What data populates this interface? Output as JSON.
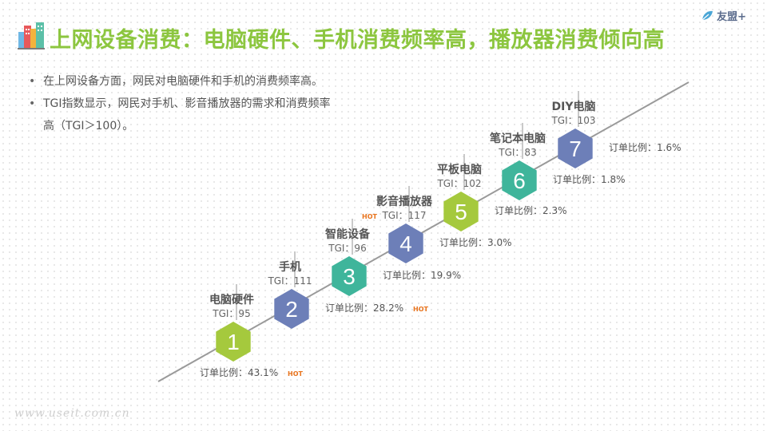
{
  "title": "上网设备消费：电脑硬件、手机消费频率高，播放器消费倾向高",
  "logo": {
    "text": "友盟+"
  },
  "bullets": [
    "在上网设备方面，网民对电脑硬件和手机的消费频率高。",
    "TGI指数显示，网民对手机、影音播放器的需求和消费频率",
    "高（TGI＞100）。"
  ],
  "footer": "www.useit.com.cn",
  "hot_label": "HOT",
  "colors": {
    "green": "#a5c93d",
    "navy": "#6d7fb8",
    "teal": "#3fb59b",
    "hot": "#e8741e",
    "title": "#8cc63f"
  },
  "steps": [
    {
      "num": "1",
      "name": "电脑硬件",
      "tgi": "TGI：95",
      "order": "订单比例：43.1%",
      "hot_name": false,
      "hot_order": true,
      "color": "green"
    },
    {
      "num": "2",
      "name": "手机",
      "tgi": "TGI：111",
      "order": "订单比例：28.2%",
      "hot_name": false,
      "hot_order": true,
      "color": "navy"
    },
    {
      "num": "3",
      "name": "智能设备",
      "tgi": "TGI：96",
      "order": "订单比例：19.9%",
      "hot_name": false,
      "hot_order": false,
      "color": "teal"
    },
    {
      "num": "4",
      "name": "影音播放器",
      "tgi": "TGI：117",
      "order": "订单比例：3.0%",
      "hot_name": true,
      "hot_order": false,
      "color": "navy"
    },
    {
      "num": "5",
      "name": "平板电脑",
      "tgi": "TGI：102",
      "order": "订单比例：2.3%",
      "hot_name": false,
      "hot_order": false,
      "color": "green"
    },
    {
      "num": "6",
      "name": "笔记本电脑",
      "tgi": "TGI：83",
      "order": "订单比例：1.8%",
      "hot_name": false,
      "hot_order": false,
      "color": "teal"
    },
    {
      "num": "7",
      "name": "DIY电脑",
      "tgi": "TGI：103",
      "order": "订单比例：1.6%",
      "hot_name": false,
      "hot_order": false,
      "color": "navy"
    }
  ]
}
